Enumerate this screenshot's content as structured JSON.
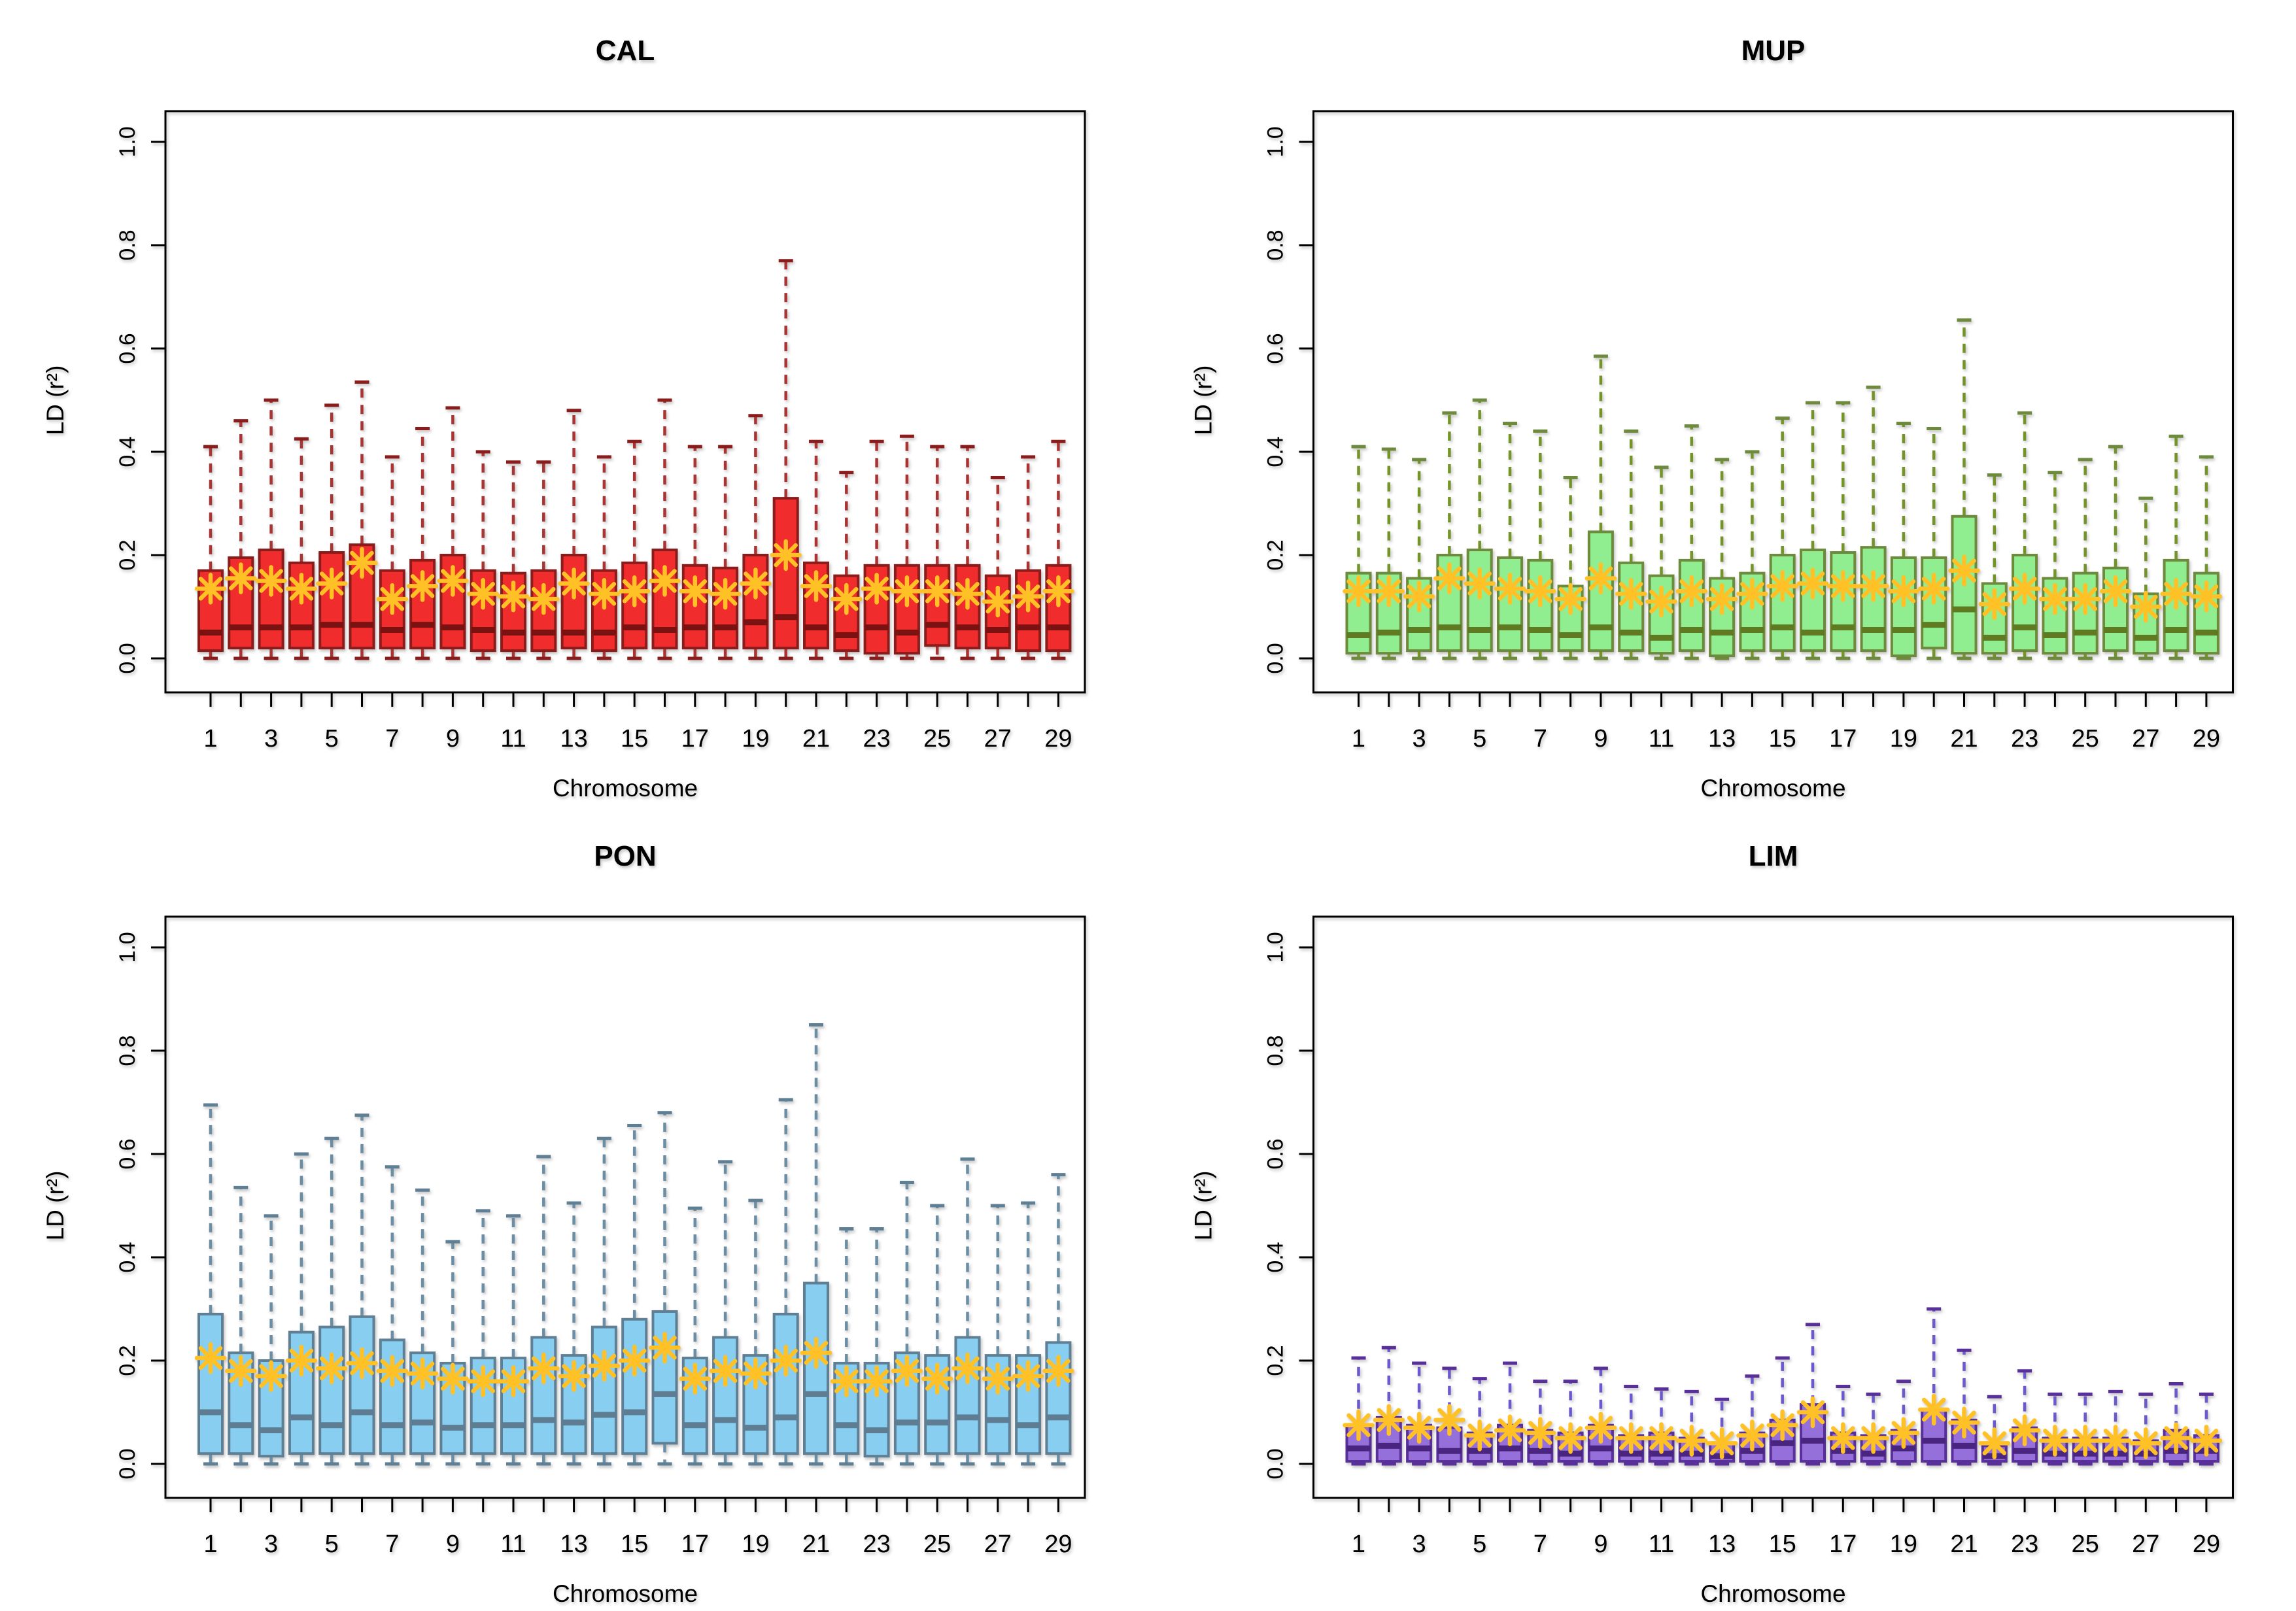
{
  "figure": {
    "background": "#FFFFFF",
    "layout": "2x2-grid",
    "y_axis": {
      "label": "LD (r²)",
      "tick_labels": [
        "0.0",
        "0.2",
        "0.4",
        "0.6",
        "0.8",
        "1.0"
      ],
      "tick_values": [
        0,
        0.2,
        0.4,
        0.6,
        0.8,
        1.0
      ],
      "range": [
        0,
        1
      ],
      "orientation": "rotated-90"
    },
    "x_axis": {
      "label": "Chromosome",
      "categories": [
        1,
        2,
        3,
        4,
        5,
        6,
        7,
        8,
        9,
        10,
        11,
        12,
        13,
        14,
        15,
        16,
        17,
        18,
        19,
        20,
        21,
        22,
        23,
        24,
        25,
        26,
        27,
        28,
        29
      ],
      "labeled_ticks": [
        "1",
        "3",
        "5",
        "7",
        "9",
        "11",
        "13",
        "15",
        "17",
        "19",
        "21",
        "23",
        "25",
        "27",
        "29"
      ]
    },
    "mean_marker": {
      "shape": "asterisk-8-spoke",
      "color": "#FFC125"
    }
  },
  "chart_data": [
    {
      "type": "boxplot",
      "title": "CAL",
      "xlabel": "Chromosome",
      "ylabel": "LD (r²)",
      "ylim": [
        0,
        1
      ],
      "grid": false,
      "stats_format": [
        "whisker_low",
        "q1",
        "median",
        "q3",
        "whisker_high",
        "mean"
      ],
      "colors": {
        "fill": "#F02C2C",
        "border": "#8B1C1C",
        "median": "#7A1212",
        "whisker": "#A93434",
        "mean": "#FFC125"
      },
      "boxes": [
        [
          0,
          0.015,
          0.05,
          0.17,
          0.41,
          0.135
        ],
        [
          0,
          0.02,
          0.06,
          0.195,
          0.46,
          0.155
        ],
        [
          0,
          0.02,
          0.06,
          0.21,
          0.5,
          0.15
        ],
        [
          0,
          0.02,
          0.06,
          0.185,
          0.425,
          0.135
        ],
        [
          0,
          0.02,
          0.065,
          0.205,
          0.49,
          0.145
        ],
        [
          0,
          0.02,
          0.065,
          0.22,
          0.535,
          0.185
        ],
        [
          0,
          0.02,
          0.055,
          0.17,
          0.39,
          0.115
        ],
        [
          0,
          0.02,
          0.065,
          0.19,
          0.445,
          0.14
        ],
        [
          0,
          0.02,
          0.06,
          0.2,
          0.485,
          0.15
        ],
        [
          0,
          0.015,
          0.055,
          0.17,
          0.4,
          0.125
        ],
        [
          0,
          0.015,
          0.05,
          0.165,
          0.38,
          0.12
        ],
        [
          0,
          0.015,
          0.05,
          0.17,
          0.38,
          0.115
        ],
        [
          0,
          0.02,
          0.05,
          0.2,
          0.48,
          0.145
        ],
        [
          0,
          0.015,
          0.05,
          0.17,
          0.39,
          0.125
        ],
        [
          0,
          0.02,
          0.06,
          0.185,
          0.42,
          0.13
        ],
        [
          0,
          0.02,
          0.055,
          0.21,
          0.5,
          0.15
        ],
        [
          0,
          0.02,
          0.06,
          0.18,
          0.41,
          0.13
        ],
        [
          0,
          0.02,
          0.06,
          0.175,
          0.41,
          0.125
        ],
        [
          0,
          0.02,
          0.07,
          0.2,
          0.47,
          0.145
        ],
        [
          0,
          0.02,
          0.08,
          0.31,
          0.77,
          0.2
        ],
        [
          0,
          0.02,
          0.06,
          0.185,
          0.42,
          0.14
        ],
        [
          0,
          0.015,
          0.045,
          0.16,
          0.36,
          0.115
        ],
        [
          0,
          0.01,
          0.06,
          0.18,
          0.42,
          0.135
        ],
        [
          0,
          0.01,
          0.05,
          0.18,
          0.43,
          0.13
        ],
        [
          0,
          0.025,
          0.065,
          0.18,
          0.41,
          0.13
        ],
        [
          0,
          0.02,
          0.06,
          0.18,
          0.41,
          0.125
        ],
        [
          0,
          0.02,
          0.055,
          0.16,
          0.35,
          0.11
        ],
        [
          0,
          0.015,
          0.06,
          0.17,
          0.39,
          0.12
        ],
        [
          0,
          0.015,
          0.06,
          0.18,
          0.42,
          0.13
        ]
      ]
    },
    {
      "type": "boxplot",
      "title": "MUP",
      "xlabel": "Chromosome",
      "ylabel": "LD (r²)",
      "ylim": [
        0,
        1
      ],
      "grid": false,
      "stats_format": [
        "whisker_low",
        "q1",
        "median",
        "q3",
        "whisker_high",
        "mean"
      ],
      "colors": {
        "fill": "#90EE90",
        "border": "#6E8B3D",
        "median": "#5F7A20",
        "whisker": "#74942A",
        "mean": "#FFC125"
      },
      "boxes": [
        [
          0,
          0.01,
          0.045,
          0.165,
          0.41,
          0.13
        ],
        [
          0,
          0.01,
          0.05,
          0.165,
          0.405,
          0.13
        ],
        [
          0,
          0.015,
          0.055,
          0.155,
          0.385,
          0.12
        ],
        [
          0,
          0.015,
          0.06,
          0.2,
          0.475,
          0.155
        ],
        [
          0,
          0.015,
          0.055,
          0.21,
          0.5,
          0.145
        ],
        [
          0,
          0.015,
          0.06,
          0.195,
          0.455,
          0.135
        ],
        [
          0,
          0.015,
          0.055,
          0.19,
          0.44,
          0.13
        ],
        [
          0,
          0.015,
          0.045,
          0.14,
          0.35,
          0.115
        ],
        [
          0,
          0.015,
          0.06,
          0.245,
          0.585,
          0.155
        ],
        [
          0,
          0.015,
          0.05,
          0.185,
          0.44,
          0.125
        ],
        [
          0,
          0.01,
          0.04,
          0.16,
          0.37,
          0.11
        ],
        [
          0,
          0.015,
          0.055,
          0.19,
          0.45,
          0.13
        ],
        [
          0,
          0.005,
          0.05,
          0.155,
          0.385,
          0.115
        ],
        [
          0,
          0.015,
          0.055,
          0.165,
          0.4,
          0.125
        ],
        [
          0,
          0.015,
          0.06,
          0.2,
          0.465,
          0.14
        ],
        [
          0,
          0.015,
          0.05,
          0.21,
          0.495,
          0.145
        ],
        [
          0,
          0.015,
          0.06,
          0.205,
          0.495,
          0.14
        ],
        [
          0,
          0.015,
          0.055,
          0.215,
          0.525,
          0.14
        ],
        [
          0,
          0.005,
          0.055,
          0.195,
          0.455,
          0.13
        ],
        [
          0,
          0.02,
          0.065,
          0.195,
          0.445,
          0.135
        ],
        [
          0,
          0.01,
          0.095,
          0.275,
          0.655,
          0.17
        ],
        [
          0,
          0.01,
          0.04,
          0.145,
          0.355,
          0.105
        ],
        [
          0,
          0.015,
          0.06,
          0.2,
          0.475,
          0.135
        ],
        [
          0,
          0.01,
          0.045,
          0.155,
          0.36,
          0.115
        ],
        [
          0,
          0.01,
          0.05,
          0.165,
          0.385,
          0.115
        ],
        [
          0,
          0.015,
          0.055,
          0.175,
          0.41,
          0.13
        ],
        [
          0,
          0.01,
          0.04,
          0.125,
          0.31,
          0.1
        ],
        [
          0,
          0.015,
          0.055,
          0.19,
          0.43,
          0.125
        ],
        [
          0,
          0.01,
          0.05,
          0.165,
          0.39,
          0.12
        ]
      ]
    },
    {
      "type": "boxplot",
      "title": "PON",
      "xlabel": "Chromosome",
      "ylabel": "LD (r²)",
      "ylim": [
        0,
        1
      ],
      "grid": false,
      "stats_format": [
        "whisker_low",
        "q1",
        "median",
        "q3",
        "whisker_high",
        "mean"
      ],
      "colors": {
        "fill": "#87CEF0",
        "border": "#5F7F95",
        "median": "#5E7D92",
        "whisker": "#6C8EA4",
        "mean": "#FFC125"
      },
      "boxes": [
        [
          0,
          0.02,
          0.1,
          0.29,
          0.695,
          0.205
        ],
        [
          0,
          0.02,
          0.075,
          0.215,
          0.535,
          0.18
        ],
        [
          0,
          0.015,
          0.065,
          0.2,
          0.48,
          0.17
        ],
        [
          0,
          0.02,
          0.09,
          0.255,
          0.6,
          0.2
        ],
        [
          0,
          0.02,
          0.075,
          0.265,
          0.63,
          0.185
        ],
        [
          0,
          0.02,
          0.1,
          0.285,
          0.675,
          0.195
        ],
        [
          0,
          0.02,
          0.075,
          0.24,
          0.575,
          0.18
        ],
        [
          0,
          0.02,
          0.08,
          0.215,
          0.53,
          0.175
        ],
        [
          0,
          0.02,
          0.07,
          0.195,
          0.43,
          0.165
        ],
        [
          0,
          0.02,
          0.075,
          0.205,
          0.49,
          0.16
        ],
        [
          0,
          0.02,
          0.075,
          0.205,
          0.48,
          0.16
        ],
        [
          0,
          0.02,
          0.085,
          0.245,
          0.595,
          0.185
        ],
        [
          0,
          0.02,
          0.08,
          0.21,
          0.505,
          0.17
        ],
        [
          0,
          0.02,
          0.095,
          0.265,
          0.63,
          0.19
        ],
        [
          0,
          0.02,
          0.1,
          0.28,
          0.655,
          0.2
        ],
        [
          0,
          0.04,
          0.135,
          0.295,
          0.68,
          0.225
        ],
        [
          0,
          0.02,
          0.075,
          0.205,
          0.495,
          0.165
        ],
        [
          0,
          0.02,
          0.085,
          0.245,
          0.585,
          0.18
        ],
        [
          0,
          0.02,
          0.07,
          0.21,
          0.51,
          0.175
        ],
        [
          0,
          0.02,
          0.09,
          0.29,
          0.705,
          0.2
        ],
        [
          0,
          0.02,
          0.135,
          0.35,
          0.85,
          0.215
        ],
        [
          0,
          0.02,
          0.075,
          0.195,
          0.455,
          0.16
        ],
        [
          0,
          0.015,
          0.065,
          0.195,
          0.455,
          0.16
        ],
        [
          0,
          0.02,
          0.08,
          0.215,
          0.545,
          0.18
        ],
        [
          0,
          0.02,
          0.08,
          0.21,
          0.5,
          0.165
        ],
        [
          0,
          0.02,
          0.09,
          0.245,
          0.59,
          0.185
        ],
        [
          0,
          0.02,
          0.085,
          0.21,
          0.5,
          0.165
        ],
        [
          0,
          0.02,
          0.075,
          0.21,
          0.505,
          0.17
        ],
        [
          0,
          0.02,
          0.09,
          0.235,
          0.56,
          0.18
        ]
      ]
    },
    {
      "type": "boxplot",
      "title": "LIM",
      "xlabel": "Chromosome",
      "ylabel": "LD (r²)",
      "ylim": [
        0,
        1
      ],
      "grid": false,
      "stats_format": [
        "whisker_low",
        "q1",
        "median",
        "q3",
        "whisker_high",
        "mean"
      ],
      "colors": {
        "fill": "#9570DB",
        "border": "#59309A",
        "median": "#4A2580",
        "whisker": "#6A5ACD",
        "mean": "#FFC125"
      },
      "boxes": [
        [
          0,
          0.005,
          0.03,
          0.075,
          0.205,
          0.075
        ],
        [
          0,
          0.005,
          0.035,
          0.09,
          0.225,
          0.085
        ],
        [
          0,
          0.005,
          0.03,
          0.075,
          0.195,
          0.07
        ],
        [
          0,
          0.005,
          0.025,
          0.07,
          0.185,
          0.085
        ],
        [
          0,
          0.005,
          0.025,
          0.06,
          0.165,
          0.055
        ],
        [
          0,
          0.005,
          0.03,
          0.075,
          0.195,
          0.065
        ],
        [
          0,
          0.005,
          0.025,
          0.065,
          0.16,
          0.06
        ],
        [
          0,
          0.005,
          0.02,
          0.06,
          0.16,
          0.05
        ],
        [
          0,
          0.005,
          0.03,
          0.075,
          0.185,
          0.07
        ],
        [
          0,
          0.005,
          0.02,
          0.055,
          0.15,
          0.05
        ],
        [
          0,
          0.005,
          0.02,
          0.06,
          0.145,
          0.05
        ],
        [
          0,
          0.005,
          0.02,
          0.05,
          0.14,
          0.045
        ],
        [
          0,
          0.005,
          0.015,
          0.04,
          0.125,
          0.04
        ],
        [
          0,
          0.005,
          0.025,
          0.06,
          0.17,
          0.055
        ],
        [
          0,
          0.005,
          0.04,
          0.085,
          0.205,
          0.075
        ],
        [
          0,
          0.005,
          0.045,
          0.115,
          0.27,
          0.1
        ],
        [
          0,
          0.005,
          0.025,
          0.06,
          0.15,
          0.05
        ],
        [
          0,
          0.005,
          0.02,
          0.055,
          0.135,
          0.05
        ],
        [
          0,
          0.005,
          0.03,
          0.065,
          0.16,
          0.06
        ],
        [
          0,
          0.005,
          0.045,
          0.105,
          0.3,
          0.105
        ],
        [
          0,
          0.005,
          0.035,
          0.085,
          0.22,
          0.08
        ],
        [
          0,
          0.005,
          0.015,
          0.035,
          0.13,
          0.04
        ],
        [
          0,
          0.005,
          0.025,
          0.07,
          0.18,
          0.065
        ],
        [
          0,
          0.005,
          0.02,
          0.05,
          0.135,
          0.045
        ],
        [
          0,
          0.005,
          0.02,
          0.05,
          0.135,
          0.045
        ],
        [
          0,
          0.005,
          0.02,
          0.05,
          0.14,
          0.045
        ],
        [
          0,
          0.005,
          0.02,
          0.045,
          0.135,
          0.04
        ],
        [
          0,
          0.005,
          0.025,
          0.065,
          0.155,
          0.05
        ],
        [
          0,
          0.005,
          0.025,
          0.055,
          0.135,
          0.045
        ]
      ]
    }
  ]
}
